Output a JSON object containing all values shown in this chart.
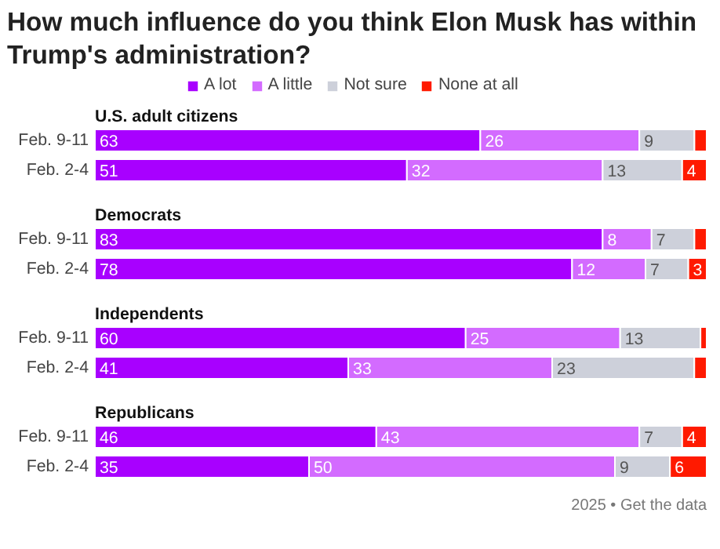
{
  "chart_data": [
    {
      "type": "bar",
      "orientation": "horizontal",
      "stacked": true,
      "title": "How much influence do you think Elon Musk has within Trump's administration?",
      "subtitle": "U.S. adult citizens",
      "legend": "top",
      "categories": [
        "Feb. 9-11",
        "Feb. 2-4"
      ],
      "series": [
        {
          "name": "A lot",
          "color": "#a800ff",
          "values": [
            63,
            51
          ],
          "value_labels": [
            "63",
            "51"
          ]
        },
        {
          "name": "A little",
          "color": "#d36bff",
          "values": [
            26,
            32
          ],
          "value_labels": [
            "26",
            "32"
          ]
        },
        {
          "name": "Not sure",
          "color": "#cdd0da",
          "values": [
            9,
            13
          ],
          "value_labels": [
            "9",
            "13"
          ]
        },
        {
          "name": "None at all",
          "color": "#ff1a00",
          "values": [
            2,
            4
          ],
          "value_labels": [
            null,
            "4"
          ]
        }
      ]
    },
    {
      "type": "bar",
      "orientation": "horizontal",
      "stacked": true,
      "title": "Democrats",
      "categories": [
        "Feb. 9-11",
        "Feb. 2-4"
      ],
      "series": [
        {
          "color": "#a800ff",
          "values": [
            83,
            78
          ],
          "value_labels": [
            "83",
            "78"
          ]
        },
        {
          "color": "#d36bff",
          "values": [
            8,
            12
          ],
          "value_labels": [
            "8",
            "12"
          ]
        },
        {
          "color": "#cdd0da",
          "values": [
            7,
            7
          ],
          "value_labels": [
            "7",
            "7"
          ]
        },
        {
          "color": "#ff1a00",
          "values": [
            2,
            3
          ],
          "value_labels": [
            null,
            "3"
          ]
        }
      ]
    },
    {
      "type": "bar",
      "orientation": "horizontal",
      "stacked": true,
      "title": "Independents",
      "categories": [
        "Feb. 9-11",
        "Feb. 2-4"
      ],
      "series": [
        {
          "color": "#a800ff",
          "values": [
            60,
            41
          ],
          "value_labels": [
            "60",
            "41"
          ]
        },
        {
          "color": "#d36bff",
          "values": [
            25,
            33
          ],
          "value_labels": [
            "25",
            "33"
          ]
        },
        {
          "color": "#cdd0da",
          "values": [
            13,
            23
          ],
          "value_labels": [
            "13",
            "23"
          ]
        },
        {
          "color": "#ff1a00",
          "values": [
            1,
            2
          ],
          "value_labels": [
            null,
            null
          ]
        }
      ]
    },
    {
      "type": "bar",
      "orientation": "horizontal",
      "stacked": true,
      "title": "Republicans",
      "categories": [
        "Feb. 9-11",
        "Feb. 2-4"
      ],
      "annotations": [
        "2025 • Get the data"
      ],
      "series": [
        {
          "color": "#a800ff",
          "values": [
            46,
            35
          ],
          "value_labels": [
            "46",
            "35"
          ]
        },
        {
          "color": "#d36bff",
          "values": [
            43,
            50
          ],
          "value_labels": [
            "43",
            "50"
          ]
        },
        {
          "color": "#cdd0da",
          "values": [
            7,
            9
          ],
          "value_labels": [
            "7",
            "9"
          ]
        },
        {
          "color": "#ff1a00",
          "values": [
            4,
            6
          ],
          "value_labels": [
            "4",
            "6"
          ]
        }
      ]
    }
  ]
}
